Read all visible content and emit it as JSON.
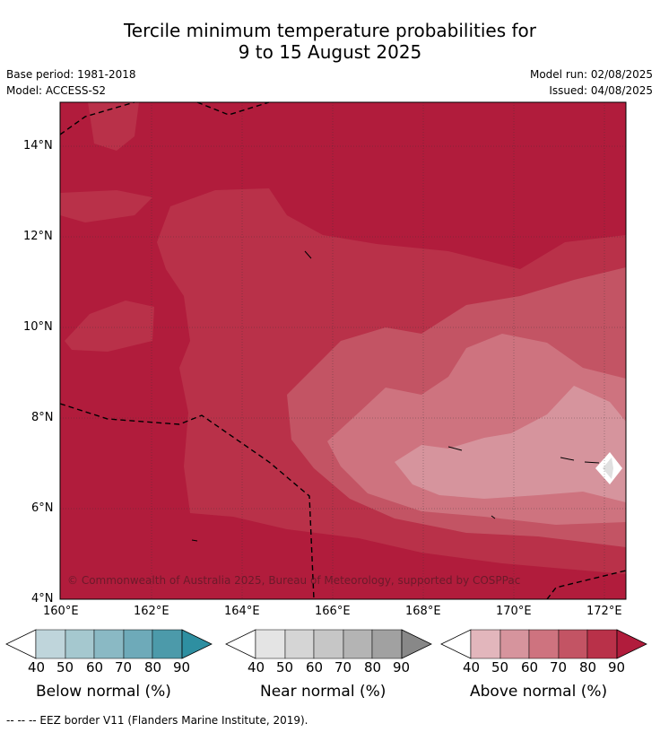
{
  "title_line1": "Tercile minimum temperature probabilities for",
  "title_line2": "9 to 15 August 2025",
  "base_period": "Base period: 1981-2018",
  "model": "Model: ACCESS-S2",
  "model_run": "Model run: 02/08/2025",
  "issued": "Issued: 04/08/2025",
  "copyright": "© Commonwealth of Australia 2025, Bureau of Meteorology, supported by COSPPac",
  "footer": "--  --  -- EEZ border V11 (Flanders Marine Institute, 2019).",
  "lat_labels": [
    "14°N",
    "12°N",
    "10°N",
    "8°N",
    "6°N",
    "4°N"
  ],
  "lon_labels": [
    "160°E",
    "162°E",
    "164°E",
    "166°E",
    "168°E",
    "170°E",
    "172°E"
  ],
  "legends": {
    "below": {
      "title": "Below normal (%)",
      "ticks": [
        "40",
        "50",
        "60",
        "70",
        "80",
        "90"
      ],
      "colors": [
        "#bfd5db",
        "#a5c8cf",
        "#8ab9c4",
        "#6eaab9",
        "#4c9aaa",
        "#2e8fa1"
      ]
    },
    "near": {
      "title": "Near normal (%)",
      "ticks": [
        "40",
        "50",
        "60",
        "70",
        "80",
        "90"
      ],
      "colors": [
        "#e4e4e4",
        "#d5d5d5",
        "#c6c6c6",
        "#b4b4b4",
        "#a1a1a1",
        "#888888"
      ]
    },
    "above": {
      "title": "Above normal (%)",
      "ticks": [
        "40",
        "50",
        "60",
        "70",
        "80",
        "90"
      ],
      "colors": [
        "#e2b6bc",
        "#d6949d",
        "#ce737f",
        "#c35464",
        "#b93149",
        "#b11c3c"
      ]
    }
  },
  "map_colors": {
    "p90": "#b11c3c",
    "p80": "#b93149",
    "p70": "#c35464",
    "p60": "#ce737f",
    "p50": "#d6949d"
  }
}
